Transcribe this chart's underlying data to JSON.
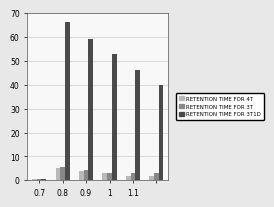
{
  "categories": [
    "0.7",
    "0.8",
    "0.9",
    "1",
    "1.1",
    ""
  ],
  "series": [
    {
      "label": "RETENTION TIME FOR 4T",
      "color": "#b8b8b8",
      "values": [
        0.5,
        5,
        4,
        3,
        2,
        2
      ]
    },
    {
      "label": "RETENTION TIME FOR 3T",
      "color": "#888888",
      "values": [
        0.5,
        5.5,
        4.5,
        3,
        3,
        3
      ]
    },
    {
      "label": "RETENTION TIME FOR 3T1D",
      "color": "#4a4a4a",
      "values": [
        0.5,
        66,
        59,
        53,
        46,
        40
      ]
    }
  ],
  "ylim": [
    0,
    70
  ],
  "yticks": [
    0,
    10,
    20,
    30,
    40,
    50,
    60,
    70
  ],
  "background_color": "#e8e8e8",
  "plot_bg": "#f8f8f8",
  "legend_fontsize": 4.0,
  "tick_fontsize": 5.5,
  "bar_width": 0.2,
  "grid_color": "#cccccc",
  "grid_lw": 0.5
}
